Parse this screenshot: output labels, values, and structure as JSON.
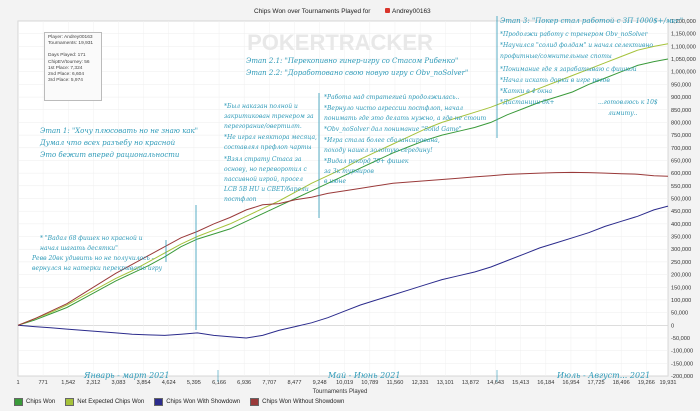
{
  "title": "Chips Won over Tournaments Played for",
  "player_name": "Andrey00163",
  "watermark": "POKERTRACKER",
  "stats": {
    "player": "Player: Andrey00163",
    "tournaments": "Tournaments: 19,931",
    "days": "Days Played: 171",
    "chipev": "ChipEV/tourney: 56",
    "first": "1st Place: 7,324",
    "second": "2nd Place: 6,604",
    "third": "3rd Place: 5,974"
  },
  "legend": [
    {
      "name": "Chips Won",
      "color": "#3a9a3a"
    },
    {
      "name": "Net Expected Chips Won",
      "color": "#a5c23a"
    },
    {
      "name": "Chips Won With Showdown",
      "color": "#2b2b8c"
    },
    {
      "name": "Chips Won Without Showdown",
      "color": "#9a3a3a"
    }
  ],
  "annotations": {
    "stage1": [
      "Этап 1: \"Хочу плюсовать но не знаю как\"",
      "Думал что всех разъебу но красной",
      "Это бежит вперед рациональности"
    ],
    "stage1_note": [
      "* \"Вадал 68 фишек но красной и",
      "начал шагать десятки\"",
      "Ревв 20вк удивить но не получилось -",
      "вернулся на натерки перекрывать игру"
    ],
    "col2": [
      "*Был наказан полной и",
      "закритикован тренером за",
      "перегорание/овертилт.",
      "*Не играл неяктора месяца,",
      "составлял префлоп чарты",
      "*Взял страту Стаса за",
      "основу, но переворотил с",
      "пассивной игрой, просел",
      "LCB 5B HU и CBET/барели",
      "постфлоп"
    ],
    "stage21": "Этап 2.1: \"Перекопивно гинер-игру со Стасом Рибенко\"",
    "stage22": "Этап 2.2: \"Доработовано свою новую игру с Obv_noSolver\"",
    "col3": [
      "*Работа над стратегией продолжилась..",
      "*Вернуло чисто агрессии постфлоп, начал",
      "понимать где это делать нужно, а где не стоит",
      "*Obv_noSolver дал понимание \"Solid Game\"",
      "*Игра стала более сбалансирована,",
      "походу нашел золотую середину!"
    ],
    "col3b": [
      "*Видал рекорд 70+ фишек",
      "за 3к турниров",
      "в июне"
    ],
    "stage3": "Этап 3: \"Покер стал работой с ЗП 1000$+/мес\"",
    "col4": [
      "*Продолжи работу с тренером Obv_noSolver",
      "*Научился \"солид фолдам\" и начал селективно",
      "профитные/сомнительные споты",
      "*Понимание где я зарабатываю с фишкой",
      "*Начал искать дорки в игре регов",
      "*Катки в 4 окна",
      "*Дистанции 6к+"
    ],
    "col4b": [
      "...готовлюсь к 10$",
      "лимиту.."
    ],
    "period1": "Январь - март 2021",
    "period2": "Май - Июнь 2021",
    "period3": "Июль - Август... 2021"
  },
  "chart_data": {
    "type": "line",
    "title": "Chips Won over Tournaments Played for Andrey00163",
    "xlabel": "Tournaments Played",
    "ylabel": "",
    "xlim": [
      1,
      19931
    ],
    "ylim": [
      -200000,
      1200000
    ],
    "x_ticks": [
      1,
      771,
      1542,
      2312,
      3083,
      3854,
      4624,
      5395,
      6166,
      6936,
      7707,
      8477,
      9248,
      10019,
      10789,
      11560,
      12331,
      13101,
      13872,
      14643,
      15413,
      16184,
      16954,
      17725,
      18496,
      19266,
      19931
    ],
    "y_ticks": [
      -200000,
      -150000,
      -100000,
      -50000,
      0,
      50000,
      100000,
      150000,
      200000,
      250000,
      300000,
      350000,
      400000,
      450000,
      500000,
      550000,
      600000,
      650000,
      700000,
      750000,
      800000,
      850000,
      900000,
      950000,
      1000000,
      1050000,
      1100000,
      1150000,
      1200000
    ],
    "grid": true,
    "legend_position": "bottom",
    "series": [
      {
        "name": "Chips Won",
        "color": "#3a9a3a",
        "x": [
          0,
          500,
          1000,
          1500,
          2000,
          2500,
          3000,
          3500,
          4000,
          4500,
          5000,
          5500,
          6000,
          6500,
          7000,
          7500,
          8000,
          8500,
          9000,
          9500,
          10000,
          10500,
          11000,
          11500,
          12000,
          12500,
          13000,
          13500,
          14000,
          14500,
          15000,
          15500,
          16000,
          16500,
          17000,
          17500,
          18000,
          18500,
          19000,
          19500,
          19931
        ],
        "y": [
          0,
          20000,
          45000,
          70000,
          105000,
          140000,
          175000,
          205000,
          235000,
          270000,
          310000,
          340000,
          360000,
          380000,
          410000,
          440000,
          470000,
          500000,
          530000,
          560000,
          590000,
          620000,
          650000,
          680000,
          705000,
          730000,
          750000,
          765000,
          780000,
          800000,
          830000,
          855000,
          880000,
          900000,
          920000,
          950000,
          975000,
          1000000,
          1025000,
          1040000,
          1050000
        ]
      },
      {
        "name": "Net Expected Chips Won",
        "color": "#a5c23a",
        "x": [
          0,
          500,
          1000,
          1500,
          2000,
          2500,
          3000,
          3500,
          4000,
          4500,
          5000,
          5500,
          6000,
          6500,
          7000,
          7500,
          8000,
          8500,
          9000,
          9500,
          10000,
          10500,
          11000,
          11500,
          12000,
          12500,
          13000,
          13500,
          14000,
          14500,
          15000,
          15500,
          16000,
          16500,
          17000,
          17500,
          18000,
          18500,
          19000,
          19500,
          19931
        ],
        "y": [
          0,
          25000,
          50000,
          80000,
          115000,
          150000,
          185000,
          215000,
          250000,
          285000,
          320000,
          350000,
          375000,
          400000,
          430000,
          460000,
          490000,
          525000,
          560000,
          590000,
          620000,
          655000,
          685000,
          715000,
          745000,
          775000,
          800000,
          820000,
          840000,
          860000,
          885000,
          910000,
          935000,
          960000,
          985000,
          1010000,
          1035000,
          1060000,
          1085000,
          1100000,
          1110000
        ]
      },
      {
        "name": "Chips Won With Showdown",
        "color": "#2b2b8c",
        "x": [
          0,
          500,
          1000,
          1500,
          2000,
          2500,
          3000,
          3500,
          4000,
          4500,
          5000,
          5500,
          6000,
          6500,
          7000,
          7500,
          8000,
          8500,
          9000,
          9500,
          10000,
          10500,
          11000,
          11500,
          12000,
          12500,
          13000,
          13500,
          14000,
          14500,
          15000,
          15500,
          16000,
          16500,
          17000,
          17500,
          18000,
          18500,
          19000,
          19500,
          19931
        ],
        "y": [
          0,
          -5000,
          -10000,
          -15000,
          -20000,
          -25000,
          -30000,
          -35000,
          -38000,
          -40000,
          -35000,
          -30000,
          -40000,
          -45000,
          -50000,
          -40000,
          -20000,
          -5000,
          10000,
          30000,
          55000,
          80000,
          100000,
          120000,
          140000,
          160000,
          180000,
          195000,
          210000,
          230000,
          255000,
          280000,
          305000,
          325000,
          345000,
          365000,
          390000,
          410000,
          430000,
          455000,
          470000
        ]
      },
      {
        "name": "Chips Won Without Showdown",
        "color": "#9a3a3a",
        "x": [
          0,
          500,
          1000,
          1500,
          2000,
          2500,
          3000,
          3500,
          4000,
          4500,
          5000,
          5500,
          6000,
          6500,
          7000,
          7500,
          8000,
          8500,
          9000,
          9500,
          10000,
          10500,
          11000,
          11500,
          12000,
          12500,
          13000,
          13500,
          14000,
          14500,
          15000,
          15500,
          16000,
          16500,
          17000,
          17500,
          18000,
          18500,
          19000,
          19500,
          19931
        ],
        "y": [
          0,
          25000,
          55000,
          85000,
          125000,
          165000,
          205000,
          240000,
          275000,
          310000,
          345000,
          370000,
          400000,
          425000,
          455000,
          475000,
          480000,
          495000,
          505000,
          520000,
          530000,
          540000,
          550000,
          560000,
          565000,
          570000,
          575000,
          580000,
          585000,
          590000,
          595000,
          598000,
          600000,
          602000,
          603000,
          602000,
          600000,
          598000,
          596000,
          590000,
          588000
        ]
      }
    ]
  }
}
